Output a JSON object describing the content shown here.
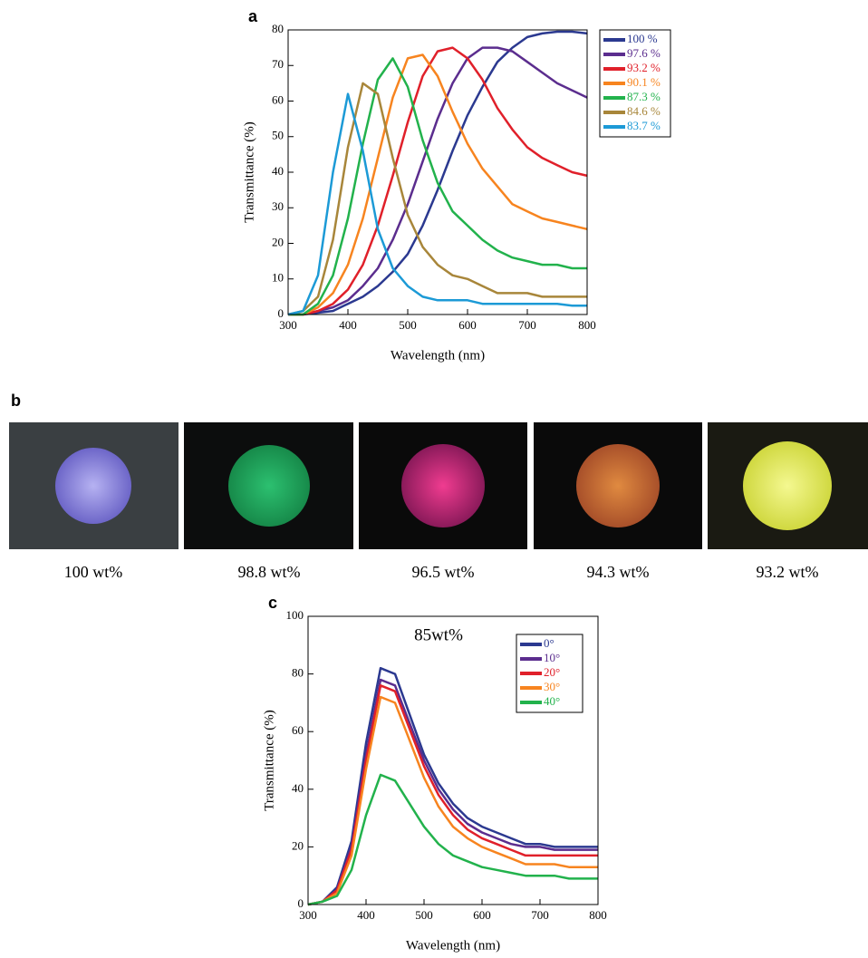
{
  "chart_data": [
    {
      "type": "line",
      "panel_label": "a",
      "x_label": "Wavelength (nm)",
      "y_label": "Transmittance (%)",
      "x": [
        300,
        325,
        350,
        375,
        400,
        425,
        450,
        475,
        500,
        525,
        550,
        575,
        600,
        625,
        650,
        675,
        700,
        725,
        750,
        775,
        800
      ],
      "xlim": [
        300,
        800
      ],
      "ylim": [
        0,
        80
      ],
      "xticks": [
        300,
        400,
        500,
        600,
        700,
        800
      ],
      "yticks": [
        0,
        10,
        20,
        30,
        40,
        50,
        60,
        70,
        80
      ],
      "legend": "outside-right",
      "series": [
        {
          "name": "100 %",
          "color": "#2b3990",
          "values": [
            0,
            0,
            0.5,
            1,
            3,
            5,
            8,
            12,
            17,
            25,
            35,
            46,
            56,
            64,
            71,
            75,
            78,
            79,
            79.5,
            79.5,
            79
          ]
        },
        {
          "name": "97.6 %",
          "color": "#5b2d8e",
          "values": [
            0,
            0,
            1,
            2,
            4,
            8,
            13,
            21,
            31,
            43,
            55,
            65,
            72,
            75,
            75,
            74,
            71,
            68,
            65,
            63,
            61
          ]
        },
        {
          "name": "93.2 %",
          "color": "#e0202a",
          "values": [
            0,
            0,
            1,
            3,
            7,
            14,
            25,
            39,
            54,
            67,
            74,
            75,
            72,
            66,
            58,
            52,
            47,
            44,
            42,
            40,
            39
          ]
        },
        {
          "name": "90.1 %",
          "color": "#f7841f",
          "values": [
            0,
            0,
            2,
            6,
            14,
            27,
            44,
            61,
            72,
            73,
            67,
            57,
            48,
            41,
            36,
            31,
            29,
            27,
            26,
            25,
            24
          ]
        },
        {
          "name": "87.3 %",
          "color": "#22b24c",
          "values": [
            0,
            0,
            3,
            11,
            27,
            48,
            66,
            72,
            64,
            49,
            37,
            29,
            25,
            21,
            18,
            16,
            15,
            14,
            14,
            13,
            13
          ]
        },
        {
          "name": "84.6 %",
          "color": "#a8863a",
          "values": [
            0,
            1,
            5,
            21,
            47,
            65,
            62,
            44,
            28,
            19,
            14,
            11,
            10,
            8,
            6,
            6,
            6,
            5,
            5,
            5,
            5
          ]
        },
        {
          "name": "83.7 %",
          "color": "#1c9ad6",
          "values": [
            0,
            1,
            11,
            40,
            62,
            46,
            24,
            13,
            8,
            5,
            4,
            4,
            4,
            3,
            3,
            3,
            3,
            3,
            3,
            2.5,
            2.5
          ]
        }
      ]
    },
    {
      "type": "line",
      "panel_label": "c",
      "x_label": "Wavelength (nm)",
      "y_label": "Transmittance (%)",
      "annotation": "85wt%",
      "x": [
        300,
        325,
        350,
        375,
        400,
        425,
        450,
        475,
        500,
        525,
        550,
        575,
        600,
        625,
        650,
        675,
        700,
        725,
        750,
        775,
        800
      ],
      "xlim": [
        300,
        800
      ],
      "ylim": [
        0,
        100
      ],
      "xticks": [
        300,
        400,
        500,
        600,
        700,
        800
      ],
      "yticks": [
        0,
        20,
        40,
        60,
        80,
        100
      ],
      "legend": "upper-right",
      "series": [
        {
          "name": "0°",
          "color": "#2b3990",
          "values": [
            0,
            1,
            6,
            22,
            56,
            82,
            80,
            66,
            52,
            42,
            35,
            30,
            27,
            25,
            23,
            21,
            21,
            20,
            20,
            20,
            20
          ]
        },
        {
          "name": "10°",
          "color": "#5b2d8e",
          "values": [
            0,
            1,
            5,
            20,
            52,
            78,
            76,
            63,
            50,
            40,
            33,
            28,
            25,
            23,
            21,
            20,
            20,
            19,
            19,
            19,
            19
          ]
        },
        {
          "name": "20°",
          "color": "#e0202a",
          "values": [
            0,
            1,
            5,
            19,
            50,
            76,
            74,
            61,
            48,
            38,
            31,
            26,
            23,
            21,
            19,
            17,
            17,
            17,
            17,
            17,
            17
          ]
        },
        {
          "name": "30°",
          "color": "#f7841f",
          "values": [
            0,
            1,
            4,
            17,
            47,
            72,
            70,
            57,
            44,
            34,
            27,
            23,
            20,
            18,
            16,
            14,
            14,
            14,
            13,
            13,
            13
          ]
        },
        {
          "name": "40°",
          "color": "#22b24c",
          "values": [
            0,
            1,
            3,
            12,
            31,
            45,
            43,
            35,
            27,
            21,
            17,
            15,
            13,
            12,
            11,
            10,
            10,
            10,
            9,
            9,
            9
          ]
        }
      ]
    }
  ],
  "photos": {
    "panel_label": "b",
    "captions": [
      "100 wt%",
      "98.8 wt%",
      "96.5 wt%",
      "94.3 wt%",
      "93.2 wt%"
    ]
  }
}
